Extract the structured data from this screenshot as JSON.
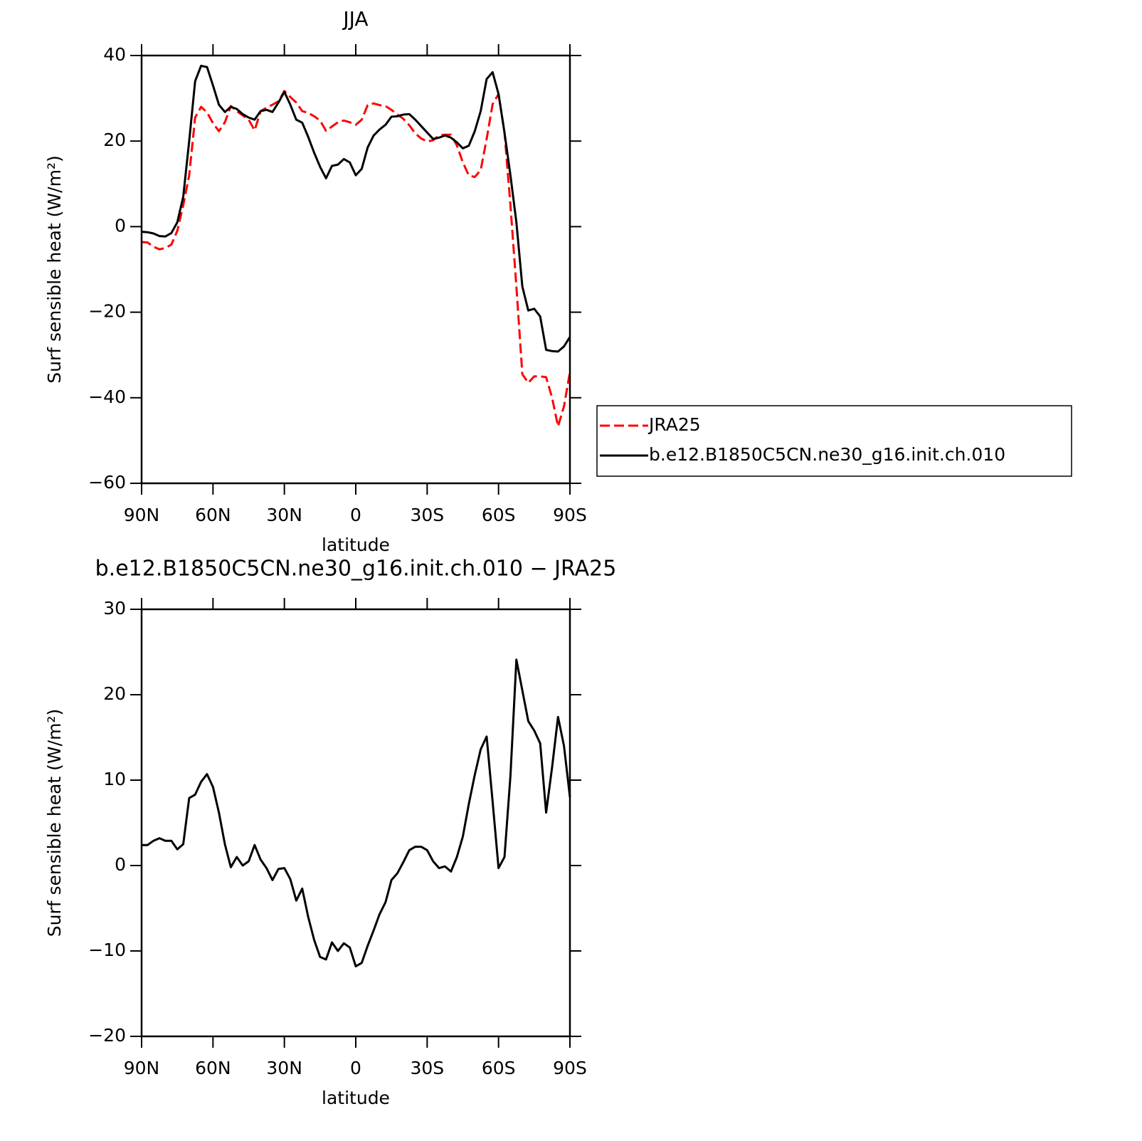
{
  "chart_data": [
    {
      "type": "line",
      "title": "JJA",
      "xlabel": "latitude",
      "ylabel": "Surf sensible heat (W/m²)",
      "x": [
        90,
        87.5,
        85,
        82.5,
        80,
        77.5,
        75,
        72.5,
        70,
        67.5,
        65,
        62.5,
        60,
        57.5,
        55,
        52.5,
        50,
        47.5,
        45,
        42.5,
        40,
        37.5,
        35,
        32.5,
        30,
        27.5,
        25,
        22.5,
        20,
        17.5,
        15,
        12.5,
        10,
        7.5,
        5,
        2.5,
        0,
        -2.5,
        -5,
        -7.5,
        -10,
        -12.5,
        -15,
        -17.5,
        -20,
        -22.5,
        -25,
        -27.5,
        -30,
        -32.5,
        -35,
        -37.5,
        -40,
        -42.5,
        -45,
        -47.5,
        -50,
        -52.5,
        -55,
        -57.5,
        -60,
        -62.5,
        -65,
        -67.5,
        -70,
        -72.5,
        -75,
        -77.5,
        -80,
        -82.5,
        -85,
        -87.5,
        -90
      ],
      "series": [
        {
          "name": "JRA25",
          "color": "#ff0000",
          "linestyle": "dashed",
          "values": [
            -3.6,
            -3.7,
            -4.7,
            -5.3,
            -5.0,
            -4.2,
            -1,
            5,
            12,
            25.5,
            28,
            26.7,
            24.2,
            22.3,
            24.4,
            28.2,
            27,
            26,
            25,
            22.5,
            27,
            27.8,
            28.5,
            29.3,
            31.7,
            30.3,
            29,
            27,
            26.6,
            25.8,
            24.8,
            22.4,
            23.4,
            24.4,
            24.8,
            24.4,
            23.8,
            25,
            28.4,
            28.8,
            28.4,
            28.2,
            27.3,
            26.2,
            25.2,
            23.7,
            21.8,
            20.6,
            19.9,
            20.2,
            21.3,
            21.5,
            21.5,
            19,
            15,
            12,
            11.6,
            13.2,
            20.5,
            28.6,
            31,
            22,
            5,
            -14,
            -34.5,
            -36.5,
            -35,
            -35,
            -35.2,
            -40,
            -46.7,
            -42,
            -34
          ]
        },
        {
          "name": "b.e12.B1850C5CN.ne30_g16.init.ch.010",
          "color": "#000000",
          "linestyle": "solid",
          "values": [
            -1.2,
            -1.3,
            -1.6,
            -2.2,
            -2.3,
            -1.5,
            1,
            7,
            20,
            34,
            37.6,
            37.3,
            33,
            28.5,
            26.8,
            28,
            27.5,
            26.3,
            25.5,
            25,
            27,
            27.3,
            26.8,
            29,
            31.5,
            28.5,
            25,
            24.3,
            21,
            17.3,
            14,
            11.3,
            14.2,
            14.5,
            15.8,
            15,
            12,
            13.5,
            18.5,
            21.3,
            22.7,
            23.8,
            25.7,
            25.8,
            26.2,
            26.3,
            25,
            23.5,
            22,
            20.5,
            20.8,
            21.3,
            20.8,
            19.7,
            18.3,
            18.9,
            22.3,
            27,
            34.5,
            36.1,
            31,
            22,
            12,
            1,
            -14,
            -19.6,
            -19.2,
            -21,
            -28.8,
            -29.1,
            -29.2,
            -28,
            -25.8
          ]
        }
      ],
      "xlim": [
        90,
        -90
      ],
      "xticks": [
        {
          "value": 90,
          "label": "90N"
        },
        {
          "value": 60,
          "label": "60N"
        },
        {
          "value": 30,
          "label": "30N"
        },
        0,
        {
          "value": -30,
          "label": "30S"
        },
        {
          "value": -60,
          "label": "60S"
        },
        {
          "value": -90,
          "label": "90S"
        }
      ],
      "ylim": [
        -60,
        40
      ],
      "yticks": [
        {
          "value": -60,
          "label": "−60"
        },
        {
          "value": -40,
          "label": "−40"
        },
        {
          "value": -20,
          "label": "−20"
        },
        0,
        20,
        40
      ],
      "legend": "right"
    },
    {
      "type": "line",
      "title": "b.e12.B1850C5CN.ne30_g16.init.ch.010 − JRA25",
      "xlabel": "latitude",
      "ylabel": "Surf sensible heat (W/m²)",
      "x": [
        90,
        87.5,
        85,
        82.5,
        80,
        77.5,
        75,
        72.5,
        70,
        67.5,
        65,
        62.5,
        60,
        57.5,
        55,
        52.5,
        50,
        47.5,
        45,
        42.5,
        40,
        37.5,
        35,
        32.5,
        30,
        27.5,
        25,
        22.5,
        20,
        17.5,
        15,
        12.5,
        10,
        7.5,
        5,
        2.5,
        0,
        -2.5,
        -5,
        -7.5,
        -10,
        -12.5,
        -15,
        -17.5,
        -20,
        -22.5,
        -25,
        -27.5,
        -30,
        -32.5,
        -35,
        -37.5,
        -40,
        -42.5,
        -45,
        -47.5,
        -50,
        -52.5,
        -55,
        -57.5,
        -60,
        -62.5,
        -65,
        -67.5,
        -70,
        -72.5,
        -75,
        -77.5,
        -80,
        -82.5,
        -85,
        -87.5,
        -90
      ],
      "series": [
        {
          "color": "#000000",
          "linestyle": "solid",
          "values": [
            2.4,
            2.4,
            2.9,
            3.2,
            2.9,
            2.9,
            1.9,
            2.5,
            7.9,
            8.3,
            9.8,
            10.7,
            9.2,
            6.2,
            2.5,
            -0.2,
            1.0,
            0.0,
            0.5,
            2.4,
            0.7,
            -0.3,
            -1.7,
            -0.4,
            -0.3,
            -1.6,
            -4.1,
            -2.7,
            -6.0,
            -8.7,
            -10.7,
            -11.0,
            -9.0,
            -10.0,
            -9.1,
            -9.6,
            -11.8,
            -11.4,
            -9.4,
            -7.6,
            -5.7,
            -4.3,
            -1.7,
            -0.9,
            0.4,
            1.8,
            2.2,
            2.2,
            1.8,
            0.5,
            -0.3,
            -0.1,
            -0.7,
            1.0,
            3.4,
            7.2,
            10.6,
            13.6,
            15.1,
            7.5,
            -0.3,
            1.0,
            10.5,
            24.1,
            20.5,
            16.9,
            15.8,
            14.3,
            6.2,
            11.5,
            17.4,
            14.0,
            8.0
          ]
        }
      ],
      "xlim": [
        90,
        -90
      ],
      "xticks": [
        {
          "value": 90,
          "label": "90N"
        },
        {
          "value": 60,
          "label": "60N"
        },
        {
          "value": 30,
          "label": "30N"
        },
        0,
        {
          "value": -30,
          "label": "30S"
        },
        {
          "value": -60,
          "label": "60S"
        },
        {
          "value": -90,
          "label": "90S"
        }
      ],
      "ylim": [
        -20,
        30
      ],
      "yticks": [
        {
          "value": -20,
          "label": "−20"
        },
        {
          "value": -10,
          "label": "−10"
        },
        0,
        10,
        20,
        30
      ]
    }
  ]
}
